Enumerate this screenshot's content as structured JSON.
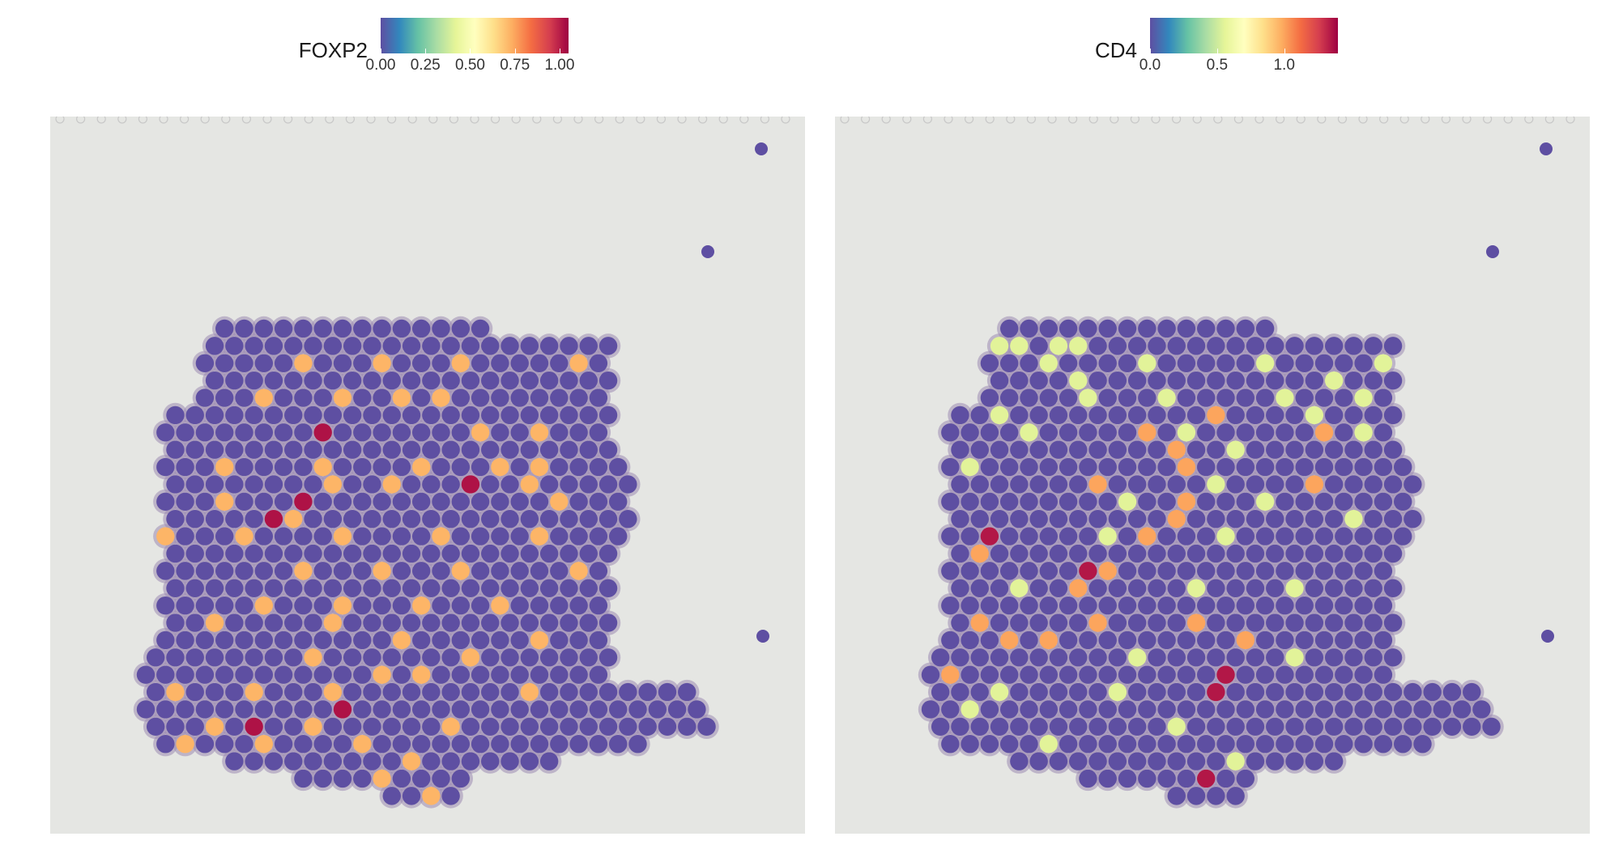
{
  "colors": {
    "panel_background": "#e5e6e3",
    "tissue_edge": "#9d8ab2",
    "scale": [
      "#5e4fa2",
      "#3288bd",
      "#66c2a5",
      "#abdda4",
      "#e6f598",
      "#ffffbf",
      "#fee08b",
      "#fdae61",
      "#f46d43",
      "#d53e4f",
      "#9e0142"
    ]
  },
  "chart_data": [
    {
      "type": "scatter",
      "subtype": "spatial-spot-plot",
      "feature": "FOXP2",
      "legend": {
        "title": "FOXP2",
        "placement": "top-center",
        "range": [
          0,
          1.05
        ],
        "tick_values": [
          0,
          0.25,
          0.5,
          0.75,
          1.0
        ],
        "tick_labels": [
          "0.00",
          "0.25",
          "0.50",
          "0.75",
          "1.00"
        ]
      },
      "grid": false,
      "axes_visible": false,
      "background_value": 0,
      "highlighted_spots": [
        {
          "col": 8,
          "row": 2,
          "value": 0.72
        },
        {
          "col": 12,
          "row": 2,
          "value": 0.72
        },
        {
          "col": 16,
          "row": 2,
          "value": 0.72
        },
        {
          "col": 22,
          "row": 2,
          "value": 0.72
        },
        {
          "col": 13,
          "row": 4,
          "value": 0.72
        },
        {
          "col": 15,
          "row": 4,
          "value": 0.72
        },
        {
          "col": 10,
          "row": 4,
          "value": 0.72
        },
        {
          "col": 26,
          "row": 4,
          "value": 0.72
        },
        {
          "col": 6,
          "row": 4,
          "value": 0.72
        },
        {
          "col": 9,
          "row": 6,
          "value": 1.02
        },
        {
          "col": 17,
          "row": 6,
          "value": 0.72
        },
        {
          "col": 20,
          "row": 6,
          "value": 0.72
        },
        {
          "col": 4,
          "row": 8,
          "value": 0.72
        },
        {
          "col": 9,
          "row": 8,
          "value": 0.72
        },
        {
          "col": 14,
          "row": 8,
          "value": 0.72
        },
        {
          "col": 18,
          "row": 8,
          "value": 0.72
        },
        {
          "col": 20,
          "row": 8,
          "value": 0.72
        },
        {
          "col": 9,
          "row": 9,
          "value": 0.72
        },
        {
          "col": 12,
          "row": 9,
          "value": 0.72
        },
        {
          "col": 16,
          "row": 9,
          "value": 1.02
        },
        {
          "col": 19,
          "row": 9,
          "value": 0.72
        },
        {
          "col": 8,
          "row": 10,
          "value": 1.02
        },
        {
          "col": 4,
          "row": 10,
          "value": 0.72
        },
        {
          "col": 21,
          "row": 10,
          "value": 0.72
        },
        {
          "col": 6,
          "row": 11,
          "value": 1.02
        },
        {
          "col": 1,
          "row": 12,
          "value": 0.72
        },
        {
          "col": 7,
          "row": 11,
          "value": 0.72
        },
        {
          "col": 25,
          "row": 11,
          "value": 0.72
        },
        {
          "col": 5,
          "row": 12,
          "value": 0.72
        },
        {
          "col": 10,
          "row": 12,
          "value": 0.72
        },
        {
          "col": 15,
          "row": 12,
          "value": 0.72
        },
        {
          "col": 20,
          "row": 12,
          "value": 0.72
        },
        {
          "col": 8,
          "row": 14,
          "value": 0.72
        },
        {
          "col": 12,
          "row": 14,
          "value": 0.72
        },
        {
          "col": 16,
          "row": 14,
          "value": 0.72
        },
        {
          "col": 22,
          "row": 14,
          "value": 0.72
        },
        {
          "col": 6,
          "row": 16,
          "value": 0.72
        },
        {
          "col": 10,
          "row": 16,
          "value": 0.72
        },
        {
          "col": 14,
          "row": 16,
          "value": 0.72
        },
        {
          "col": 18,
          "row": 16,
          "value": 0.72
        },
        {
          "col": 3,
          "row": 17,
          "value": 0.72
        },
        {
          "col": 9,
          "row": 17,
          "value": 0.72
        },
        {
          "col": 13,
          "row": 18,
          "value": 0.72
        },
        {
          "col": 20,
          "row": 18,
          "value": 0.72
        },
        {
          "col": 8,
          "row": 19,
          "value": 0.72
        },
        {
          "col": 16,
          "row": 19,
          "value": 0.72
        },
        {
          "col": 12,
          "row": 20,
          "value": 0.72
        },
        {
          "col": 14,
          "row": 20,
          "value": 0.72
        },
        {
          "col": 1,
          "row": 21,
          "value": 0.72
        },
        {
          "col": 5,
          "row": 21,
          "value": 0.72
        },
        {
          "col": 9,
          "row": 21,
          "value": 0.72
        },
        {
          "col": 19,
          "row": 21,
          "value": 0.72
        },
        {
          "col": 5,
          "row": 23,
          "value": 1.02
        },
        {
          "col": 3,
          "row": 23,
          "value": 0.72
        },
        {
          "col": 10,
          "row": 22,
          "value": 1.02
        },
        {
          "col": 8,
          "row": 23,
          "value": 0.72
        },
        {
          "col": 15,
          "row": 23,
          "value": 0.72
        },
        {
          "col": 2,
          "row": 24,
          "value": 0.72
        },
        {
          "col": 6,
          "row": 24,
          "value": 0.72
        },
        {
          "col": 11,
          "row": 24,
          "value": 0.72
        },
        {
          "col": 13,
          "row": 25,
          "value": 0.72
        },
        {
          "col": 12,
          "row": 26,
          "value": 0.72
        },
        {
          "col": 14,
          "row": 27,
          "value": 0.72
        }
      ]
    },
    {
      "type": "scatter",
      "subtype": "spatial-spot-plot",
      "feature": "CD4",
      "legend": {
        "title": "CD4",
        "placement": "top-center",
        "range": [
          0,
          1.4
        ],
        "tick_values": [
          0,
          0.5,
          1.0
        ],
        "tick_labels": [
          "0.0",
          "0.5",
          "1.0"
        ]
      },
      "grid": false,
      "axes_visible": false,
      "background_value": 0,
      "highlighted_spots": [
        {
          "col": 3,
          "row": 1,
          "value": 0.55
        },
        {
          "col": 4,
          "row": 1,
          "value": 0.55
        },
        {
          "col": 6,
          "row": 1,
          "value": 0.55
        },
        {
          "col": 7,
          "row": 1,
          "value": 0.55
        },
        {
          "col": 6,
          "row": 2,
          "value": 0.55
        },
        {
          "col": 7,
          "row": 3,
          "value": 0.55
        },
        {
          "col": 11,
          "row": 2,
          "value": 0.55
        },
        {
          "col": 17,
          "row": 2,
          "value": 0.55
        },
        {
          "col": 23,
          "row": 2,
          "value": 0.55
        },
        {
          "col": 20,
          "row": 3,
          "value": 0.55
        },
        {
          "col": 27,
          "row": 3,
          "value": 0.55
        },
        {
          "col": 1,
          "row": 4,
          "value": 1.0
        },
        {
          "col": 2,
          "row": 4,
          "value": 0.55
        },
        {
          "col": 8,
          "row": 4,
          "value": 0.55
        },
        {
          "col": 12,
          "row": 4,
          "value": 0.55
        },
        {
          "col": 18,
          "row": 4,
          "value": 0.55
        },
        {
          "col": 22,
          "row": 4,
          "value": 0.55
        },
        {
          "col": 3,
          "row": 5,
          "value": 0.55
        },
        {
          "col": 14,
          "row": 5,
          "value": 1.0
        },
        {
          "col": 19,
          "row": 5,
          "value": 0.55
        },
        {
          "col": 24,
          "row": 5,
          "value": 0.55
        },
        {
          "col": 26,
          "row": 5,
          "value": 0.55
        },
        {
          "col": 5,
          "row": 6,
          "value": 0.55
        },
        {
          "col": 11,
          "row": 6,
          "value": 1.0
        },
        {
          "col": 13,
          "row": 6,
          "value": 0.55
        },
        {
          "col": 20,
          "row": 6,
          "value": 1.0
        },
        {
          "col": 22,
          "row": 6,
          "value": 0.55
        },
        {
          "col": 12,
          "row": 7,
          "value": 1.0
        },
        {
          "col": 15,
          "row": 7,
          "value": 0.55
        },
        {
          "col": 2,
          "row": 8,
          "value": 0.55
        },
        {
          "col": 13,
          "row": 8,
          "value": 1.0
        },
        {
          "col": 8,
          "row": 9,
          "value": 1.0
        },
        {
          "col": 14,
          "row": 9,
          "value": 0.55
        },
        {
          "col": 19,
          "row": 9,
          "value": 1.0
        },
        {
          "col": 10,
          "row": 10,
          "value": 0.55
        },
        {
          "col": 13,
          "row": 10,
          "value": 1.0
        },
        {
          "col": 17,
          "row": 10,
          "value": 0.55
        },
        {
          "col": 12,
          "row": 11,
          "value": 1.0
        },
        {
          "col": 21,
          "row": 11,
          "value": 0.55
        },
        {
          "col": 3,
          "row": 12,
          "value": 1.35
        },
        {
          "col": 9,
          "row": 12,
          "value": 0.55
        },
        {
          "col": 11,
          "row": 12,
          "value": 1.0
        },
        {
          "col": 15,
          "row": 12,
          "value": 0.55
        },
        {
          "col": 2,
          "row": 13,
          "value": 1.0
        },
        {
          "col": 8,
          "row": 14,
          "value": 1.35
        },
        {
          "col": 9,
          "row": 14,
          "value": 1.0
        },
        {
          "col": 4,
          "row": 15,
          "value": 0.55
        },
        {
          "col": 7,
          "row": 15,
          "value": 1.0
        },
        {
          "col": 13,
          "row": 15,
          "value": 0.55
        },
        {
          "col": 18,
          "row": 15,
          "value": 0.55
        },
        {
          "col": 2,
          "row": 17,
          "value": 1.0
        },
        {
          "col": 8,
          "row": 17,
          "value": 1.0
        },
        {
          "col": 13,
          "row": 17,
          "value": 1.0
        },
        {
          "col": 16,
          "row": 18,
          "value": 1.0
        },
        {
          "col": 4,
          "row": 18,
          "value": 1.0
        },
        {
          "col": 6,
          "row": 18,
          "value": 1.0
        },
        {
          "col": 10,
          "row": 19,
          "value": 0.55
        },
        {
          "col": 18,
          "row": 19,
          "value": 0.55
        },
        {
          "col": 1,
          "row": 20,
          "value": 1.0
        },
        {
          "col": 15,
          "row": 20,
          "value": 1.35
        },
        {
          "col": 14,
          "row": 21,
          "value": 1.35
        },
        {
          "col": 3,
          "row": 21,
          "value": 0.55
        },
        {
          "col": 9,
          "row": 21,
          "value": 0.55
        },
        {
          "col": 2,
          "row": 22,
          "value": 0.55
        },
        {
          "col": 12,
          "row": 23,
          "value": 0.55
        },
        {
          "col": 6,
          "row": 24,
          "value": 0.55
        },
        {
          "col": 15,
          "row": 25,
          "value": 0.55
        },
        {
          "col": 14,
          "row": 26,
          "value": 1.35
        }
      ]
    }
  ]
}
